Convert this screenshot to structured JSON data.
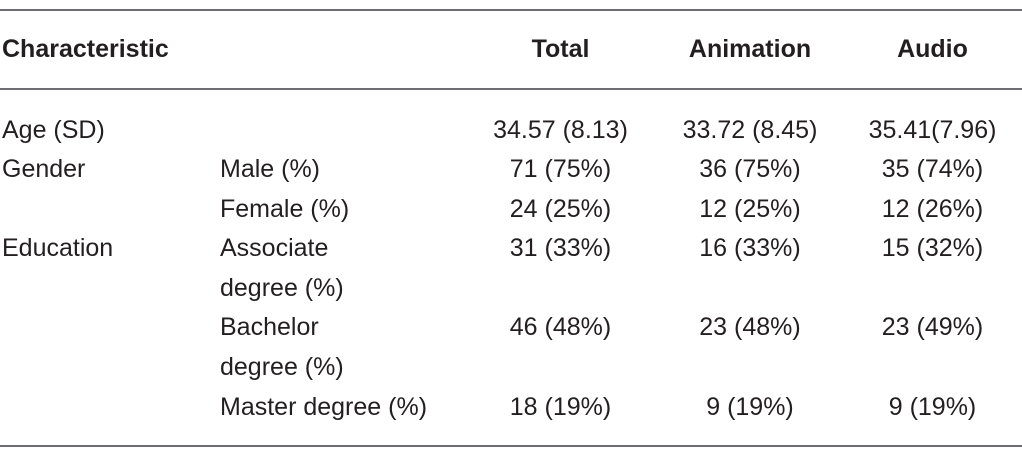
{
  "table": {
    "headers": {
      "characteristic": "Characteristic",
      "total": "Total",
      "animation": "Animation",
      "audio": "Audio"
    },
    "rows": [
      {
        "group": "Age (SD)",
        "sub": "",
        "total": "34.57 (8.13)",
        "animation": "33.72 (8.45)",
        "audio": "35.41(7.96)"
      },
      {
        "group": "Gender",
        "sub": "Male (%)",
        "total": "71 (75%)",
        "animation": "36 (75%)",
        "audio": "35 (74%)"
      },
      {
        "group": "",
        "sub": "Female (%)",
        "total": "24 (25%)",
        "animation": "12 (25%)",
        "audio": "12 (26%)"
      },
      {
        "group": "Education",
        "sub": "Associate",
        "total": "31 (33%)",
        "animation": "16 (33%)",
        "audio": "15 (32%)"
      },
      {
        "group": "",
        "sub": "degree (%)",
        "total": "",
        "animation": "",
        "audio": ""
      },
      {
        "group": "",
        "sub": "Bachelor",
        "total": "46 (48%)",
        "animation": "23 (48%)",
        "audio": "23 (49%)"
      },
      {
        "group": "",
        "sub": "degree (%)",
        "total": "",
        "animation": "",
        "audio": ""
      },
      {
        "group": "",
        "sub": "Master degree (%)",
        "total": "18 (19%)",
        "animation": "9 (19%)",
        "audio": "9 (19%)"
      }
    ]
  }
}
